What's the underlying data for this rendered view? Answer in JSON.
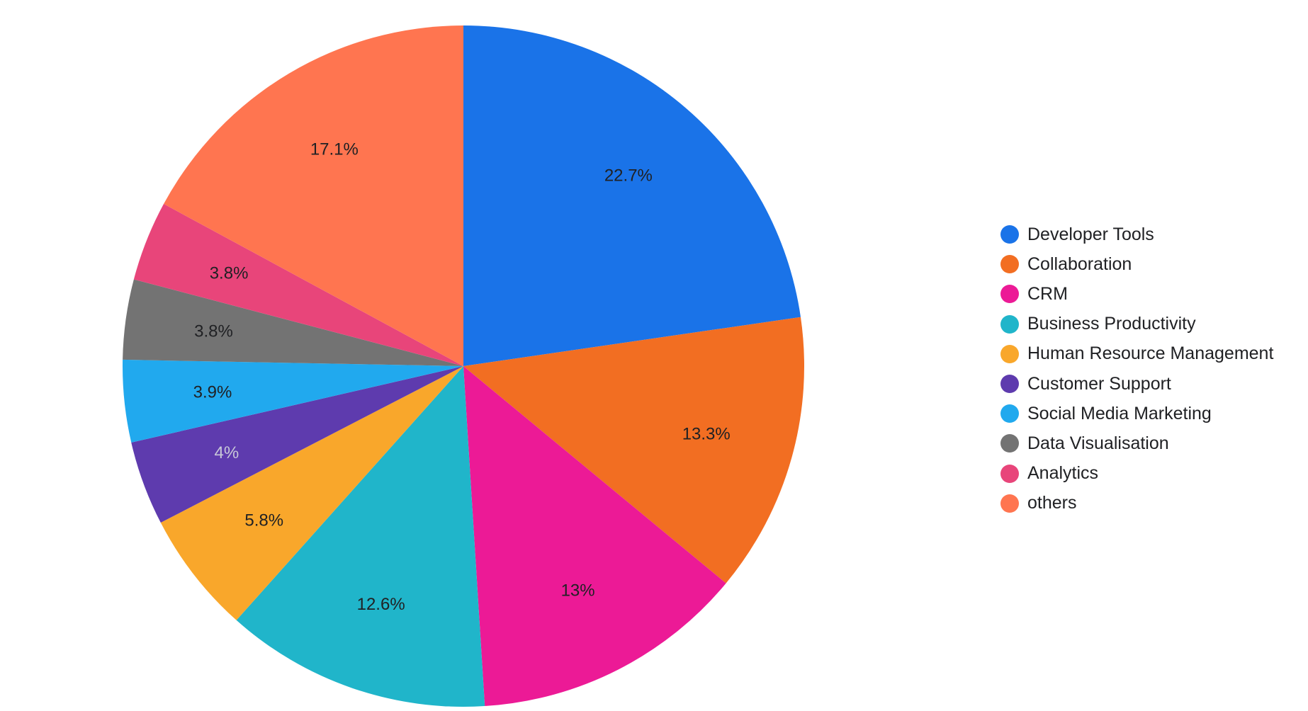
{
  "chart_data": {
    "type": "pie",
    "title": "",
    "legend_position": "right",
    "start_angle_deg": 0,
    "direction": "clockwise",
    "slices": [
      {
        "name": "Developer Tools",
        "value": 22.7,
        "label": "22.7%",
        "color": "#1A73E8",
        "label_color": "#202124"
      },
      {
        "name": "Collaboration",
        "value": 13.3,
        "label": "13.3%",
        "color": "#F26E22",
        "label_color": "#202124"
      },
      {
        "name": "CRM",
        "value": 13.0,
        "label": "13%",
        "color": "#EC1A96",
        "label_color": "#202124"
      },
      {
        "name": "Business Productivity",
        "value": 12.6,
        "label": "12.6%",
        "color": "#20B5CA",
        "label_color": "#202124"
      },
      {
        "name": "Human Resource Management",
        "value": 5.8,
        "label": "5.8%",
        "color": "#F9A72B",
        "label_color": "#202124"
      },
      {
        "name": "Customer Support",
        "value": 4.0,
        "label": "4%",
        "color": "#5E3BAE",
        "label_color": "#C8C8D8"
      },
      {
        "name": "Social Media Marketing",
        "value": 3.9,
        "label": "3.9%",
        "color": "#21A9EE",
        "label_color": "#202124"
      },
      {
        "name": "Data Visualisation",
        "value": 3.8,
        "label": "3.8%",
        "color": "#737373",
        "label_color": "#202124"
      },
      {
        "name": "Analytics",
        "value": 3.8,
        "label": "3.8%",
        "color": "#E8457A",
        "label_color": "#202124"
      },
      {
        "name": "others",
        "value": 17.1,
        "label": "17.1%",
        "color": "#FF7550",
        "label_color": "#202124"
      }
    ]
  }
}
